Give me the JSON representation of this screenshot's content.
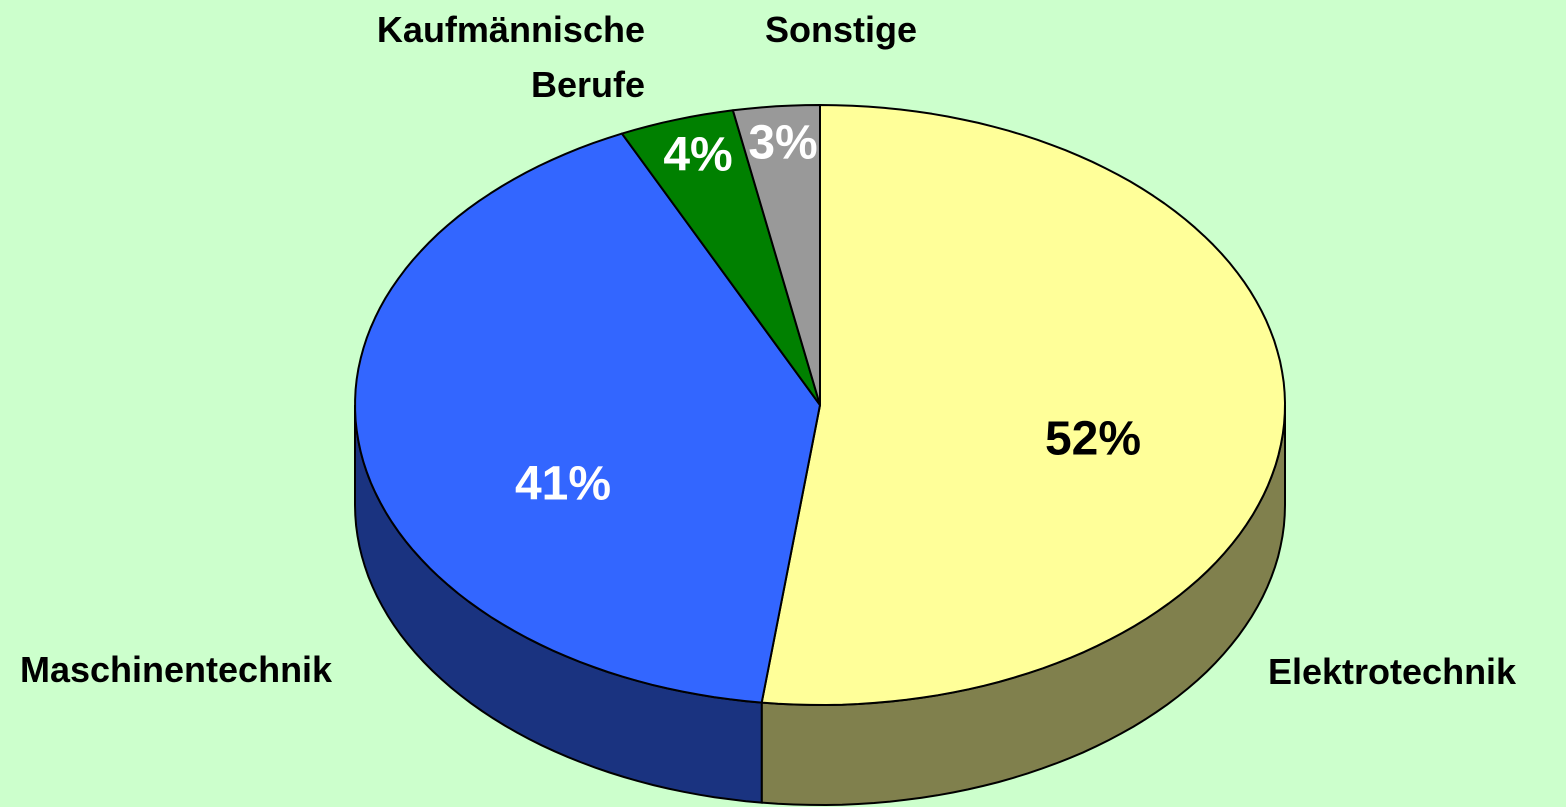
{
  "chart_data": {
    "type": "pie",
    "categories": [
      "Elektrotechnik",
      "Maschinentechnik",
      "Kaufmännische Berufe",
      "Sonstige"
    ],
    "values": [
      52,
      41,
      4,
      3
    ],
    "value_labels": [
      "52%",
      "41%",
      "4%",
      "3%"
    ],
    "colors": [
      "#ffff99",
      "#3366ff",
      "#008000",
      "#999999"
    ],
    "three_d": true
  }
}
